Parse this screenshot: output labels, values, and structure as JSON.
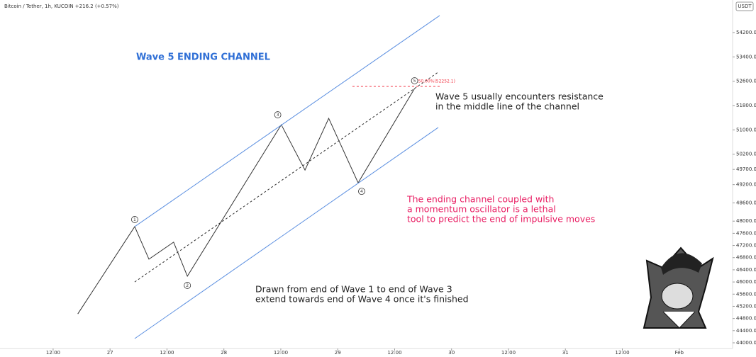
{
  "chart_data": {
    "type": "line",
    "subtitle": "Bitcoin / Tether, 1h, KUCOIN +216.2 (+0.57%)",
    "currency": "USDT",
    "title": "Wave 5 ENDING CHANNEL",
    "title_color": "#2f6fd6",
    "xlim": [
      -11.2,
      142.8
    ],
    "ylim": [
      43860,
      55270
    ],
    "xticks": [
      {
        "value": 0,
        "label": "12:00"
      },
      {
        "value": 12,
        "label": "27"
      },
      {
        "value": 24,
        "label": "12:00"
      },
      {
        "value": 36,
        "label": "28"
      },
      {
        "value": 48,
        "label": "12:00"
      },
      {
        "value": 60,
        "label": "29"
      },
      {
        "value": 72,
        "label": "12:00"
      },
      {
        "value": 84,
        "label": "30"
      },
      {
        "value": 96,
        "label": "12:00"
      },
      {
        "value": 108,
        "label": "31"
      },
      {
        "value": 120,
        "label": "12:00"
      },
      {
        "value": 132,
        "label": "Feb"
      }
    ],
    "yticks": [
      {
        "value": 54200,
        "label": "54200.0"
      },
      {
        "value": 53400,
        "label": "53400.0"
      },
      {
        "value": 52600,
        "label": "52600.0"
      },
      {
        "value": 51800,
        "label": "51800.0"
      },
      {
        "value": 51000,
        "label": "51000.0"
      },
      {
        "value": 50200,
        "label": "50200.0"
      },
      {
        "value": 49700,
        "label": "49700.0"
      },
      {
        "value": 49200,
        "label": "49200.0"
      },
      {
        "value": 48600,
        "label": "48600.0"
      },
      {
        "value": 48000,
        "label": "48000.0"
      },
      {
        "value": 47600,
        "label": "47600.0"
      },
      {
        "value": 47200,
        "label": "47200.0"
      },
      {
        "value": 46800,
        "label": "46800.0"
      },
      {
        "value": 46400,
        "label": "46400.0"
      },
      {
        "value": 46000,
        "label": "46000.0"
      },
      {
        "value": 45600,
        "label": "45600.0"
      },
      {
        "value": 45200,
        "label": "45200.0"
      },
      {
        "value": 44800,
        "label": "44800.0"
      },
      {
        "value": 44400,
        "label": "44400.0"
      },
      {
        "value": 44000,
        "label": "44000.0"
      }
    ],
    "series": [
      {
        "color": "#333333",
        "dashed": false,
        "x": [
          5.2,
          17.2,
          20.2,
          25.4,
          28.3,
          48.1,
          53.1,
          58.1,
          64.3,
          76.2
        ],
        "values": [
          44950,
          47820,
          46750,
          47310,
          46190,
          51170,
          49680,
          51380,
          49260,
          52360
        ]
      },
      {
        "color": "#5b8fe0",
        "dashed": false,
        "x": [
          17.2,
          81.5
        ],
        "values": [
          47820,
          54760
        ]
      },
      {
        "color": "#5b8fe0",
        "dashed": false,
        "x": [
          17.2,
          81.2
        ],
        "values": [
          44140,
          51080
        ]
      },
      {
        "color": "#333333",
        "dashed": true,
        "x": [
          17.2,
          81.2
        ],
        "values": [
          46000,
          52900
        ]
      },
      {
        "color": "#f23645",
        "dashed": true,
        "x": [
          63.1,
          81.5
        ],
        "values": [
          52430,
          52430
        ]
      }
    ],
    "level_label": "50.00%(52252.1)",
    "wave_labels": [
      "1",
      "2",
      "3",
      "4",
      "5"
    ],
    "annotations": [
      {
        "color": "#222222",
        "lines": [
          "Wave 5 usually encounters resistance",
          "in the middle line of the channel"
        ]
      },
      {
        "color": "#e91e63",
        "lines": [
          "The ending channel coupled with",
          "a momentum oscillator is a lethal",
          "tool to predict the end of impulsive moves"
        ]
      },
      {
        "color": "#222222",
        "lines": [
          "Drawn from end of Wave 1 to end of Wave 3",
          "extend towards end of Wave 4 once it's finished"
        ]
      }
    ]
  }
}
